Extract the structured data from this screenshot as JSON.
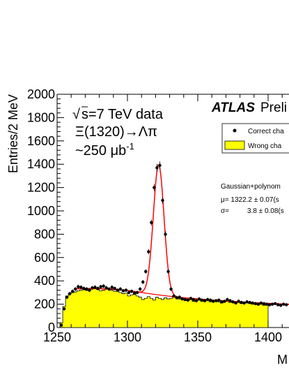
{
  "chart_data": {
    "type": "histogram",
    "ylabel": "Entries/2 MeV",
    "xlabel": "M",
    "xlim": [
      1250,
      1420
    ],
    "ylim": [
      0,
      2000
    ],
    "x_ticks": [
      "1250",
      "1300",
      "1350",
      "1400"
    ],
    "y_ticks": [
      "0",
      "200",
      "400",
      "600",
      "800",
      "1000",
      "1200",
      "1400",
      "1600",
      "1800",
      "2000"
    ],
    "annotations": {
      "energy_sqrt": "√",
      "energy_rest": "s=7 TeV data",
      "decay": "Ξ(1320)→Λπ",
      "luminosity_base": "~250 μb",
      "luminosity_exp": "-1",
      "experiment": "ATLAS",
      "status": "Preli",
      "fit_model": "Gaussian+polynom",
      "fit_mu": "μ= 1322.2 ± 0.07(s",
      "fit_sigma_sym": "σ=",
      "fit_sigma": "3.8 ± 0.08(s"
    },
    "legend": {
      "placement": "top-right",
      "entries": [
        {
          "label": "Correct cha",
          "style": "marker"
        },
        {
          "label": "Wrong cha",
          "style": "fill"
        }
      ]
    },
    "colors": {
      "wrong_fill": "#ffff00",
      "fit_curve": "#ff0000",
      "data_marker": "#000000"
    },
    "wrong_charge_hist": {
      "bin_width": 2,
      "x_start": 1252,
      "values": [
        40,
        180,
        270,
        290,
        300,
        305,
        315,
        320,
        325,
        318,
        322,
        330,
        335,
        325,
        315,
        320,
        330,
        325,
        320,
        310,
        315,
        300,
        290,
        295,
        270,
        280,
        285,
        270,
        260,
        240,
        250,
        265,
        250,
        235,
        260,
        250,
        240,
        255,
        245,
        250,
        270,
        255,
        245,
        240,
        235,
        230,
        240,
        225,
        230,
        235,
        225,
        230,
        235,
        220,
        225,
        230,
        220,
        210,
        220,
        225,
        215,
        220,
        210,
        215,
        205,
        210,
        215,
        205,
        200,
        210,
        195,
        200,
        190,
        195
      ]
    },
    "correct_charge_points": {
      "x": [
        1253,
        1255,
        1257,
        1259,
        1261,
        1263,
        1265,
        1267,
        1269,
        1271,
        1273,
        1275,
        1277,
        1279,
        1281,
        1283,
        1285,
        1287,
        1289,
        1291,
        1293,
        1295,
        1297,
        1299,
        1301,
        1303,
        1305,
        1307,
        1309,
        1311,
        1313,
        1315,
        1317,
        1319,
        1321,
        1323,
        1325,
        1327,
        1329,
        1331,
        1333,
        1335,
        1337,
        1339,
        1341,
        1343,
        1345,
        1347,
        1349,
        1351,
        1353,
        1355,
        1357,
        1359,
        1361,
        1363,
        1365,
        1367,
        1369,
        1371,
        1373,
        1375,
        1377,
        1379,
        1381,
        1383,
        1385,
        1387,
        1389,
        1391,
        1393,
        1395,
        1397,
        1399,
        1401,
        1403,
        1405,
        1407,
        1409,
        1411,
        1413,
        1415,
        1417,
        1419
      ],
      "y": [
        20,
        160,
        260,
        290,
        310,
        330,
        350,
        345,
        335,
        330,
        320,
        340,
        345,
        335,
        350,
        355,
        340,
        330,
        345,
        335,
        320,
        330,
        315,
        320,
        300,
        310,
        295,
        300,
        330,
        390,
        480,
        650,
        900,
        1200,
        1370,
        1390,
        1090,
        800,
        480,
        330,
        270,
        255,
        260,
        245,
        240,
        235,
        250,
        240,
        230,
        245,
        235,
        230,
        240,
        235,
        225,
        230,
        235,
        220,
        225,
        240,
        230,
        220,
        210,
        225,
        215,
        210,
        220,
        215,
        210,
        205,
        200,
        210,
        205,
        200,
        195,
        200,
        205,
        195,
        190,
        200,
        195,
        190,
        195,
        185
      ]
    },
    "fit": {
      "model": "Gaussian+polynomial",
      "mu": 1322.2,
      "sigma": 3.8,
      "amplitude": 1115,
      "bg_curve": {
        "x": [
          1262,
          1270,
          1280,
          1290,
          1300,
          1310,
          1320,
          1330,
          1340,
          1350,
          1360,
          1370,
          1380,
          1390,
          1400,
          1410,
          1420
        ],
        "y": [
          330,
          335,
          333,
          328,
          318,
          300,
          283,
          268,
          255,
          245,
          236,
          228,
          220,
          213,
          207,
          202,
          197
        ]
      }
    }
  }
}
